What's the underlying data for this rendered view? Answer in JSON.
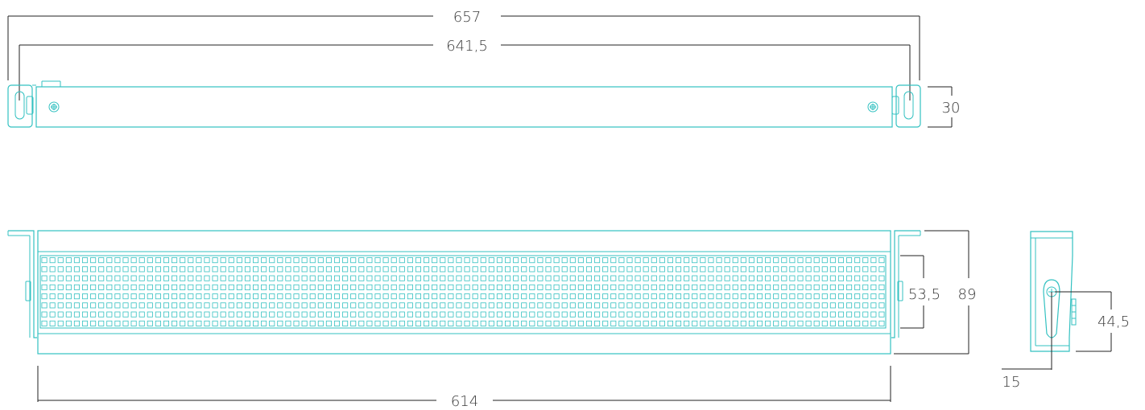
{
  "colors": {
    "outline": "#33c1c1",
    "dimension": "#222222",
    "text": "#3a3a3a"
  },
  "top_view": {
    "overall_width": "657",
    "mounting_holes_width": "641,5",
    "height": "30"
  },
  "front_view": {
    "body_width": "614",
    "led_field_height": "53,5",
    "overall_height": "89",
    "led_grid": {
      "rows": 8,
      "columns": 104
    }
  },
  "side_view": {
    "pivot_height": "44,5",
    "pivot_offset": "15"
  }
}
